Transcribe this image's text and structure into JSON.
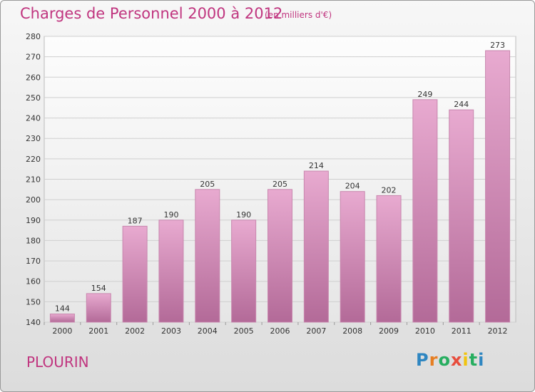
{
  "header": {
    "title": "Charges de Personnel 2000 à 2012",
    "subtitle": "(en milliers d'€)"
  },
  "footer": {
    "city": "PLOURIN",
    "logo_letters": [
      "P",
      "r",
      "o",
      "x",
      "i",
      "t",
      "i"
    ]
  },
  "colors": {
    "title": "#c0357f",
    "bar_light": "#e6a6cc",
    "bar_dark": "#b86f9c",
    "logo": [
      "#2e86c1",
      "#e67e22",
      "#27ae60",
      "#e74c3c",
      "#f1c40f",
      "#27ae60",
      "#2e86c1"
    ]
  },
  "chart_data": {
    "type": "bar",
    "categories": [
      "2000",
      "2001",
      "2002",
      "2003",
      "2004",
      "2005",
      "2006",
      "2007",
      "2008",
      "2009",
      "2010",
      "2011",
      "2012"
    ],
    "values": [
      144,
      154,
      187,
      190,
      205,
      190,
      205,
      214,
      204,
      202,
      249,
      244,
      273
    ],
    "ylim": [
      140,
      280
    ],
    "yticks": [
      140,
      150,
      160,
      170,
      180,
      190,
      200,
      210,
      220,
      230,
      240,
      250,
      260,
      270,
      280
    ],
    "grid": true,
    "data_labels": true
  }
}
